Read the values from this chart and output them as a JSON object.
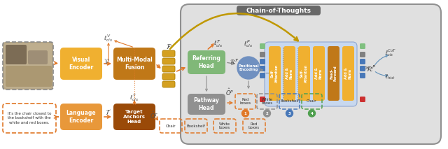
{
  "title": "Chain-of-Thoughts",
  "visual_encoder_color": "#f0b030",
  "multimodal_fusion_color": "#c07818",
  "language_encoder_color": "#e8983a",
  "target_anchors_color": "#9a4a08",
  "referring_head_color": "#80b878",
  "pathway_head_color": "#909090",
  "transformer_bg_color": "#c8d8ee",
  "self_attn_color": "#f0b030",
  "feed_forward_color": "#c07818",
  "add_norm_color": "#f0b030",
  "cot_bg_color": "#e0e0e0",
  "orange": "#e07828",
  "gold": "#c09800",
  "gray": "#909090",
  "blue": "#4878b8",
  "green": "#50a050",
  "input_text": "It's the chair closest to\nthe bookshelf with the\nwhite and red boxes.",
  "pathway_items": [
    "Red\nboxes",
    "White\nboxes",
    "Bookshelf",
    "Chair"
  ],
  "pathway_ec": [
    "#e07828",
    "#909090",
    "#4878b8",
    "#50a050"
  ],
  "pathway_num_colors": [
    "#e07828",
    "#909090",
    "#4878b8",
    "#50a050"
  ],
  "anchor_items": [
    "Chair",
    "Bookshelf",
    "White\nboxes",
    "Red\nboxes"
  ]
}
